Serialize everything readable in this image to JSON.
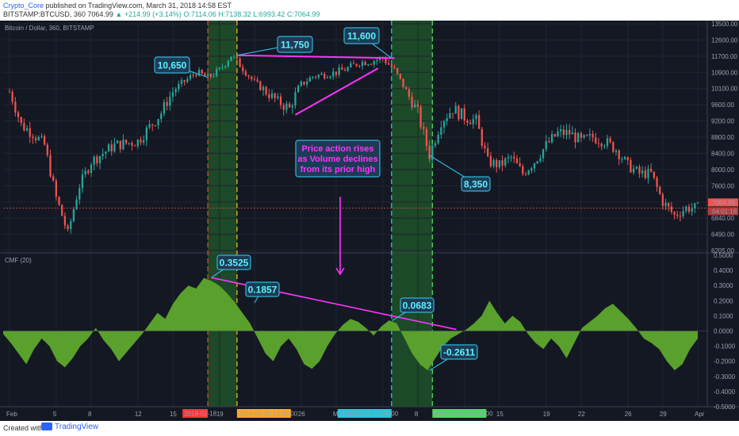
{
  "header": {
    "author": "Crypto_Core",
    "published": "published on TradingView.com, March 31, 2018 14:58 EST",
    "symbol_line_prefix": "BITSTAMP:BTCUSD, 360 ",
    "last": "7064.99",
    "change": "▲ +214.99 (+3.14%)",
    "ohlc": "O:7114.06 H:7138.32 L:6993.42 C:7064.99"
  },
  "footer": {
    "created_with": "Created with",
    "brand": "TradingView"
  },
  "colors": {
    "bg": "#141823",
    "up": "#26a69a",
    "down": "#ef5350",
    "cmf_fill": "#5aa02c",
    "annot_line": "#ff33ff",
    "label_fill": "#1d3b55",
    "label_text": "#5ff0ff",
    "label_stroke": "#2fb5d8",
    "vline_red": "#ff3333",
    "vline_orange": "#ffa726",
    "vline_cyan": "#26c6da",
    "vline_green": "#4cd964",
    "highlight": "#1f5a2a"
  },
  "chart_data": [
    {
      "type": "candlestick",
      "title": "Bitcoin / Dollar, 360, BITSTAMP",
      "ylabel": "",
      "ylim": [
        6205,
        13500
      ],
      "y_ticks": [
        "13500.00",
        "12600.00",
        "11700.00",
        "10900.00",
        "10100.00",
        "9600.00",
        "9200.00",
        "8800.00",
        "8400.00",
        "8000.00",
        "7600.00",
        "7200.00",
        "6840.00",
        "6490.00",
        "6205.00"
      ],
      "last_price_label": "7064.99",
      "countdown_label": "04:01:18",
      "x_ticks": [
        "Feb",
        "5",
        "8",
        "12",
        "15",
        "19",
        "22",
        "26",
        "Mar",
        "5",
        "8",
        "12",
        "15",
        "19",
        "22",
        "26",
        "29",
        "Apr"
      ],
      "date_markers": [
        "2018-02-18",
        "2018-02-20 12:00:00",
        "2018-03-05 18:00:00",
        "2018-03-09 06:00:00"
      ],
      "close_path": [
        [
          "Feb",
          10000
        ],
        [
          "Feb 2",
          9100
        ],
        [
          "Feb 3",
          8900
        ],
        [
          "Feb 4",
          8600
        ],
        [
          "Feb 5",
          7300
        ],
        [
          "Feb 6",
          6500
        ],
        [
          "Feb 7",
          7600
        ],
        [
          "Feb 8",
          8200
        ],
        [
          "Feb 10",
          8600
        ],
        [
          "Feb 12",
          8700
        ],
        [
          "Feb 14",
          9400
        ],
        [
          "Feb 15",
          10000
        ],
        [
          "Feb 17",
          10900
        ],
        [
          "Feb 18",
          10650
        ],
        [
          "Feb 19",
          11000
        ],
        [
          "Feb 20",
          11750
        ],
        [
          "Feb 21",
          11100
        ],
        [
          "Feb 22",
          10400
        ],
        [
          "Feb 23",
          10000
        ],
        [
          "Feb 24",
          9700
        ],
        [
          "Feb 25",
          9500
        ],
        [
          "Feb 26",
          10300
        ],
        [
          "Feb 27",
          10700
        ],
        [
          "Feb 28",
          10800
        ],
        [
          "Mar 1",
          10900
        ],
        [
          "Mar 2",
          11100
        ],
        [
          "Mar 3",
          11400
        ],
        [
          "Mar 4",
          11450
        ],
        [
          "Mar 5",
          11600
        ],
        [
          "Mar 6",
          11000
        ],
        [
          "Mar 7",
          10000
        ],
        [
          "Mar 8",
          9400
        ],
        [
          "Mar 9",
          8350
        ],
        [
          "Mar 10",
          9200
        ],
        [
          "Mar 11",
          9500
        ],
        [
          "Mar 12",
          9300
        ],
        [
          "Mar 13",
          9200
        ],
        [
          "Mar 14",
          8200
        ],
        [
          "Mar 15",
          8100
        ],
        [
          "Mar 16",
          8300
        ],
        [
          "Mar 17",
          7900
        ],
        [
          "Mar 18",
          8200
        ],
        [
          "Mar 19",
          8600
        ],
        [
          "Mar 20",
          8900
        ],
        [
          "Mar 21",
          8900
        ],
        [
          "Mar 22",
          8700
        ],
        [
          "Mar 23",
          8800
        ],
        [
          "Mar 24",
          8700
        ],
        [
          "Mar 25",
          8500
        ],
        [
          "Mar 26",
          8100
        ],
        [
          "Mar 27",
          7900
        ],
        [
          "Mar 28",
          7900
        ],
        [
          "Mar 29",
          7200
        ],
        [
          "Mar 30",
          6900
        ],
        [
          "Mar 31",
          7064.99
        ]
      ],
      "annotations": {
        "labels": [
          "10,650",
          "11,750",
          "11,600",
          "8,350"
        ],
        "note": "Price action rises\nas Volume declines\nfrom its prior high"
      }
    },
    {
      "type": "area",
      "title": "CMF (20)",
      "ylim": [
        -0.5,
        0.5
      ],
      "y_ticks": [
        "0.5000",
        "0.4000",
        "0.3000",
        "0.2000",
        "0.1000",
        "0.0000",
        "-0.1000",
        "-0.2000",
        "-0.3000",
        "-0.4000",
        "-0.5000"
      ],
      "values": [
        -0.02,
        -0.08,
        -0.15,
        -0.22,
        -0.12,
        -0.05,
        -0.1,
        -0.2,
        -0.24,
        -0.18,
        -0.1,
        -0.05,
        0.02,
        -0.06,
        -0.12,
        -0.2,
        -0.14,
        -0.08,
        -0.02,
        0.05,
        0.12,
        0.08,
        0.18,
        0.25,
        0.3,
        0.28,
        0.35,
        0.33,
        0.3,
        0.25,
        0.19,
        0.12,
        0.05,
        -0.05,
        -0.15,
        -0.2,
        -0.1,
        -0.05,
        -0.12,
        -0.22,
        -0.25,
        -0.2,
        -0.1,
        -0.02,
        0.04,
        0.08,
        0.06,
        0.02,
        -0.03,
        0.03,
        0.07,
        0.05,
        -0.05,
        -0.15,
        -0.22,
        -0.26,
        -0.18,
        -0.1,
        -0.05,
        -0.02,
        0.01,
        0.05,
        0.1,
        0.2,
        0.12,
        0.05,
        0.1,
        0.06,
        -0.02,
        -0.08,
        -0.12,
        -0.05,
        -0.1,
        -0.18,
        -0.08,
        0.02,
        0.06,
        0.1,
        0.15,
        0.18,
        0.13,
        0.08,
        0.02,
        -0.05,
        -0.08,
        -0.12,
        -0.2,
        -0.26,
        -0.22,
        -0.12,
        -0.05
      ],
      "annotations": {
        "labels": [
          "0.3525",
          "0.1857",
          "0.0683",
          "-0.2611"
        ]
      }
    }
  ]
}
